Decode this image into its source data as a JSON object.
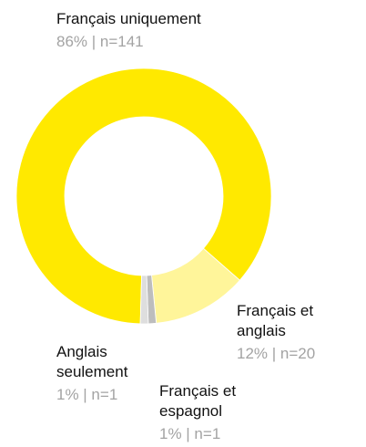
{
  "chart_data": {
    "type": "donut",
    "categories": [
      "Français uniquement",
      "Français et anglais",
      "Français et espagnol",
      "Anglais seulement"
    ],
    "values": [
      86,
      12,
      1,
      1
    ],
    "value_labels": [
      "86% | n=141",
      "12% | n=20",
      "1% | n=1",
      "1% | n=1"
    ],
    "colors": [
      "#ffe900",
      "#fff59a",
      "#bdbdbd",
      "#dedede"
    ]
  }
}
